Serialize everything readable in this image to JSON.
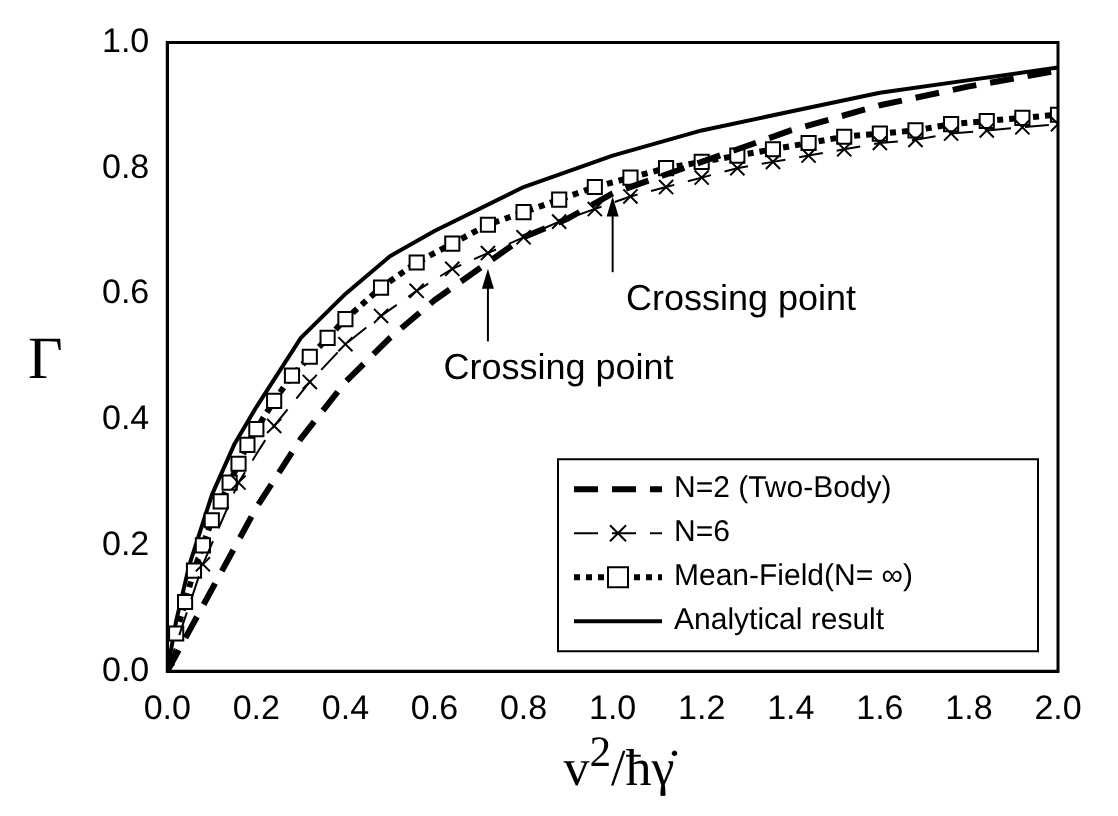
{
  "chart_data": {
    "type": "line",
    "xlabel": "v$^{2}$/ħγ̇",
    "ylabel": "Γ",
    "xlim": [
      0,
      2
    ],
    "ylim": [
      0,
      1
    ],
    "xticks": [
      {
        "value": 0,
        "label": "0.0"
      },
      0.2,
      0.4,
      0.6,
      0.8,
      {
        "value": 1,
        "label": "1.0"
      },
      1.2,
      1.4,
      1.6,
      1.8,
      {
        "value": 2,
        "label": "2.0"
      }
    ],
    "yticks": [
      {
        "value": 0,
        "label": "0.0"
      },
      0.2,
      0.4,
      0.6,
      0.8,
      {
        "value": 1,
        "label": "1.0"
      }
    ],
    "grid": false,
    "legend": "bottom right",
    "annotations": [
      {
        "text": "Crossing point",
        "x": 0.72,
        "y": 0.66
      },
      {
        "text": "Crossing point",
        "x": 1.0,
        "y": 0.77
      }
    ],
    "series": [
      {
        "name": "N=2 (Two-Body)",
        "color": "#000000",
        "line_style": "dashed",
        "marker": "none",
        "x": [
          0,
          0.1,
          0.2,
          0.3,
          0.4,
          0.5,
          0.6,
          0.7,
          0.8,
          0.9,
          1.0,
          1.2,
          1.4,
          1.6,
          1.8,
          2.0
        ],
        "values": [
          0,
          0.13,
          0.26,
          0.37,
          0.46,
          0.53,
          0.59,
          0.64,
          0.69,
          0.72,
          0.76,
          0.81,
          0.86,
          0.9,
          0.93,
          0.955
        ]
      },
      {
        "name": "N=6",
        "color": "#000000",
        "line_style": "dashed",
        "marker": "cross",
        "x": [
          0,
          0.08,
          0.16,
          0.24,
          0.32,
          0.4,
          0.48,
          0.56,
          0.64,
          0.72,
          0.8,
          0.88,
          0.96,
          1.04,
          1.12,
          1.2,
          1.28,
          1.36,
          1.44,
          1.52,
          1.6,
          1.68,
          1.76,
          1.84,
          1.92,
          2.0
        ],
        "values": [
          0,
          0.17,
          0.3,
          0.39,
          0.46,
          0.52,
          0.565,
          0.605,
          0.64,
          0.665,
          0.69,
          0.715,
          0.735,
          0.755,
          0.77,
          0.785,
          0.8,
          0.81,
          0.82,
          0.83,
          0.84,
          0.845,
          0.855,
          0.86,
          0.865,
          0.87
        ]
      },
      {
        "name": "Mean-Field(N= ∞)",
        "color": "#000000",
        "line_style": "dotted",
        "marker": "square",
        "x": [
          0.02,
          0.04,
          0.06,
          0.08,
          0.1,
          0.12,
          0.14,
          0.16,
          0.18,
          0.2,
          0.24,
          0.28,
          0.32,
          0.36,
          0.4,
          0.48,
          0.56,
          0.64,
          0.72,
          0.8,
          0.88,
          0.96,
          1.04,
          1.12,
          1.2,
          1.28,
          1.36,
          1.44,
          1.52,
          1.6,
          1.68,
          1.76,
          1.84,
          1.92,
          2.0
        ],
        "values": [
          0.06,
          0.11,
          0.16,
          0.2,
          0.24,
          0.27,
          0.3,
          0.33,
          0.36,
          0.385,
          0.43,
          0.47,
          0.5,
          0.53,
          0.56,
          0.61,
          0.65,
          0.68,
          0.71,
          0.73,
          0.75,
          0.77,
          0.785,
          0.8,
          0.81,
          0.82,
          0.83,
          0.84,
          0.85,
          0.855,
          0.86,
          0.87,
          0.875,
          0.88,
          0.885
        ]
      },
      {
        "name": "Analytical result",
        "color": "#000000",
        "line_style": "solid",
        "marker": "none",
        "x": [
          0,
          0.02,
          0.05,
          0.1,
          0.15,
          0.2,
          0.3,
          0.4,
          0.5,
          0.6,
          0.8,
          1.0,
          1.2,
          1.4,
          1.6,
          1.8,
          2.0
        ],
        "values": [
          0,
          0.08,
          0.17,
          0.28,
          0.36,
          0.42,
          0.53,
          0.6,
          0.66,
          0.7,
          0.77,
          0.82,
          0.86,
          0.89,
          0.92,
          0.94,
          0.96
        ]
      }
    ]
  }
}
